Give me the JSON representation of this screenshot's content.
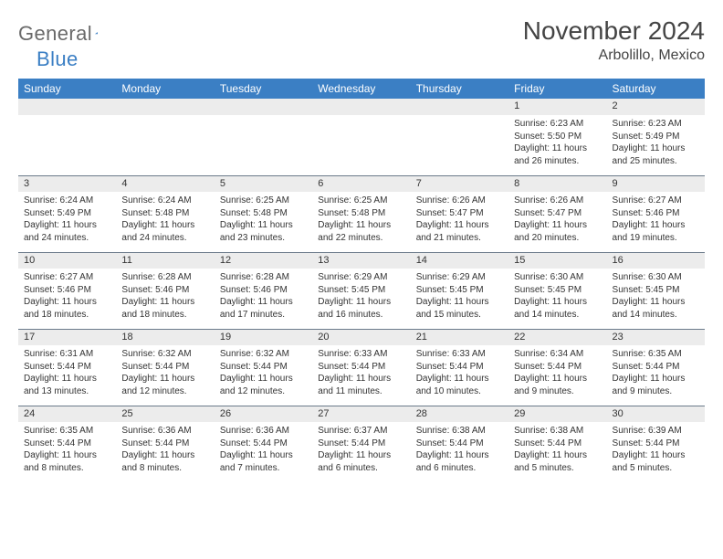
{
  "logo": {
    "text1": "General",
    "text2": "Blue"
  },
  "title": "November 2024",
  "subtitle": "Arbolillo, Mexico",
  "colors": {
    "header_bg": "#3b7fc4",
    "header_text": "#ffffff",
    "daynum_bg": "#ececec",
    "border": "#6b7a8a",
    "text": "#333333",
    "logo_gray": "#6a6a6a",
    "logo_blue": "#3b7fc4"
  },
  "weekdays": [
    "Sunday",
    "Monday",
    "Tuesday",
    "Wednesday",
    "Thursday",
    "Friday",
    "Saturday"
  ],
  "weeks": [
    [
      null,
      null,
      null,
      null,
      null,
      {
        "n": "1",
        "sr": "6:23 AM",
        "ss": "5:50 PM",
        "dl": "11 hours and 26 minutes."
      },
      {
        "n": "2",
        "sr": "6:23 AM",
        "ss": "5:49 PM",
        "dl": "11 hours and 25 minutes."
      }
    ],
    [
      {
        "n": "3",
        "sr": "6:24 AM",
        "ss": "5:49 PM",
        "dl": "11 hours and 24 minutes."
      },
      {
        "n": "4",
        "sr": "6:24 AM",
        "ss": "5:48 PM",
        "dl": "11 hours and 24 minutes."
      },
      {
        "n": "5",
        "sr": "6:25 AM",
        "ss": "5:48 PM",
        "dl": "11 hours and 23 minutes."
      },
      {
        "n": "6",
        "sr": "6:25 AM",
        "ss": "5:48 PM",
        "dl": "11 hours and 22 minutes."
      },
      {
        "n": "7",
        "sr": "6:26 AM",
        "ss": "5:47 PM",
        "dl": "11 hours and 21 minutes."
      },
      {
        "n": "8",
        "sr": "6:26 AM",
        "ss": "5:47 PM",
        "dl": "11 hours and 20 minutes."
      },
      {
        "n": "9",
        "sr": "6:27 AM",
        "ss": "5:46 PM",
        "dl": "11 hours and 19 minutes."
      }
    ],
    [
      {
        "n": "10",
        "sr": "6:27 AM",
        "ss": "5:46 PM",
        "dl": "11 hours and 18 minutes."
      },
      {
        "n": "11",
        "sr": "6:28 AM",
        "ss": "5:46 PM",
        "dl": "11 hours and 18 minutes."
      },
      {
        "n": "12",
        "sr": "6:28 AM",
        "ss": "5:46 PM",
        "dl": "11 hours and 17 minutes."
      },
      {
        "n": "13",
        "sr": "6:29 AM",
        "ss": "5:45 PM",
        "dl": "11 hours and 16 minutes."
      },
      {
        "n": "14",
        "sr": "6:29 AM",
        "ss": "5:45 PM",
        "dl": "11 hours and 15 minutes."
      },
      {
        "n": "15",
        "sr": "6:30 AM",
        "ss": "5:45 PM",
        "dl": "11 hours and 14 minutes."
      },
      {
        "n": "16",
        "sr": "6:30 AM",
        "ss": "5:45 PM",
        "dl": "11 hours and 14 minutes."
      }
    ],
    [
      {
        "n": "17",
        "sr": "6:31 AM",
        "ss": "5:44 PM",
        "dl": "11 hours and 13 minutes."
      },
      {
        "n": "18",
        "sr": "6:32 AM",
        "ss": "5:44 PM",
        "dl": "11 hours and 12 minutes."
      },
      {
        "n": "19",
        "sr": "6:32 AM",
        "ss": "5:44 PM",
        "dl": "11 hours and 12 minutes."
      },
      {
        "n": "20",
        "sr": "6:33 AM",
        "ss": "5:44 PM",
        "dl": "11 hours and 11 minutes."
      },
      {
        "n": "21",
        "sr": "6:33 AM",
        "ss": "5:44 PM",
        "dl": "11 hours and 10 minutes."
      },
      {
        "n": "22",
        "sr": "6:34 AM",
        "ss": "5:44 PM",
        "dl": "11 hours and 9 minutes."
      },
      {
        "n": "23",
        "sr": "6:35 AM",
        "ss": "5:44 PM",
        "dl": "11 hours and 9 minutes."
      }
    ],
    [
      {
        "n": "24",
        "sr": "6:35 AM",
        "ss": "5:44 PM",
        "dl": "11 hours and 8 minutes."
      },
      {
        "n": "25",
        "sr": "6:36 AM",
        "ss": "5:44 PM",
        "dl": "11 hours and 8 minutes."
      },
      {
        "n": "26",
        "sr": "6:36 AM",
        "ss": "5:44 PM",
        "dl": "11 hours and 7 minutes."
      },
      {
        "n": "27",
        "sr": "6:37 AM",
        "ss": "5:44 PM",
        "dl": "11 hours and 6 minutes."
      },
      {
        "n": "28",
        "sr": "6:38 AM",
        "ss": "5:44 PM",
        "dl": "11 hours and 6 minutes."
      },
      {
        "n": "29",
        "sr": "6:38 AM",
        "ss": "5:44 PM",
        "dl": "11 hours and 5 minutes."
      },
      {
        "n": "30",
        "sr": "6:39 AM",
        "ss": "5:44 PM",
        "dl": "11 hours and 5 minutes."
      }
    ]
  ],
  "labels": {
    "sunrise": "Sunrise:",
    "sunset": "Sunset:",
    "daylight": "Daylight:"
  }
}
